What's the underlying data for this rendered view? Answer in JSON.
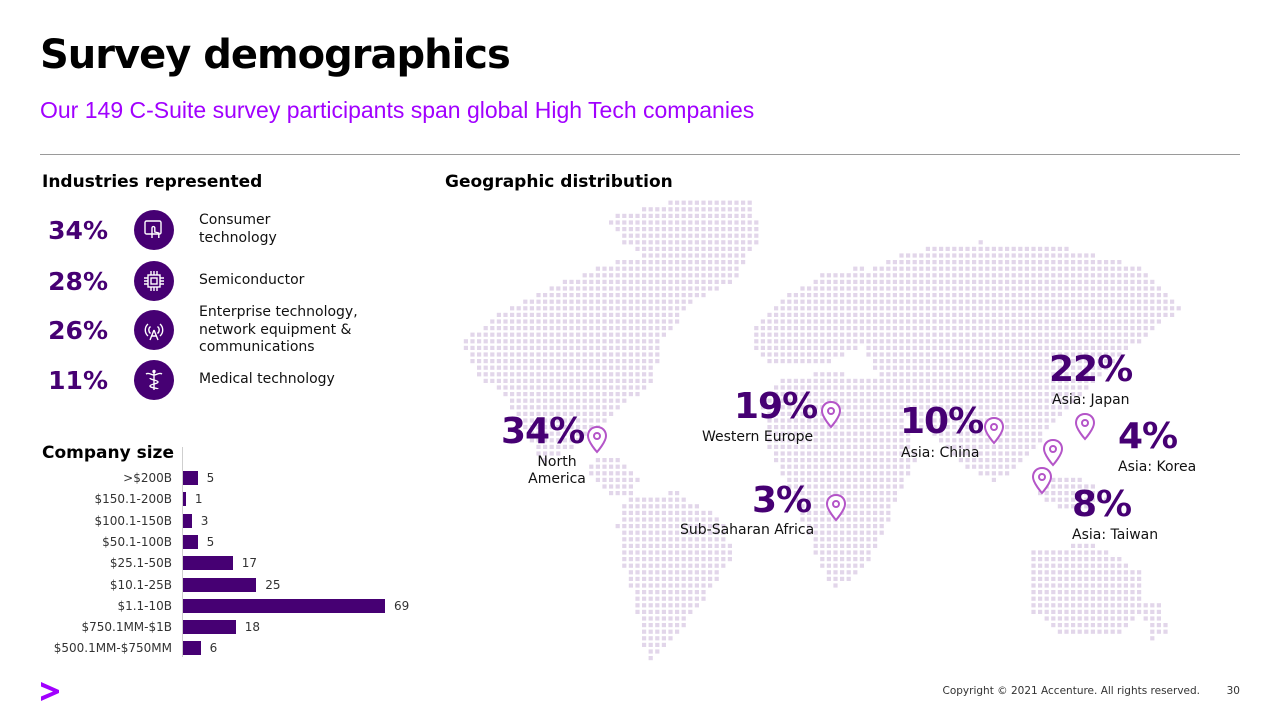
{
  "header": {
    "title": "Survey demographics",
    "subtitle": "Our 149 C-Suite survey participants span global High Tech companies"
  },
  "industries": {
    "heading": "Industries represented",
    "items": [
      {
        "pct": "34%",
        "label": "Consumer technology",
        "icon": "touch-screen-icon"
      },
      {
        "pct": "28%",
        "label": "Semiconductor",
        "icon": "chip-icon"
      },
      {
        "pct": "26%",
        "label": "Enterprise technology, network equipment & communications",
        "icon": "broadcast-tower-icon"
      },
      {
        "pct": "11%",
        "label": "Medical technology",
        "icon": "caduceus-icon"
      }
    ]
  },
  "company_size": {
    "heading": "Company size"
  },
  "chart_data": {
    "type": "bar",
    "orientation": "horizontal",
    "title": "Company size",
    "categories": [
      ">$200B",
      "$150.1-200B",
      "$100.1-150B",
      "$50.1-100B",
      "$25.1-50B",
      "$10.1-25B",
      "$1.1-10B",
      "$750.1MM-$1B",
      "$500.1MM-$750MM"
    ],
    "values": [
      5,
      1,
      3,
      5,
      17,
      25,
      69,
      18,
      6
    ],
    "xlim": [
      0,
      69
    ],
    "grid": false,
    "legend": "none",
    "color": "#460073"
  },
  "geography": {
    "heading": "Geographic distribution",
    "regions": [
      {
        "pct": "34%",
        "label": "North America"
      },
      {
        "pct": "19%",
        "label": "Western Europe"
      },
      {
        "pct": "3%",
        "label": "Sub-Saharan Africa"
      },
      {
        "pct": "10%",
        "label": "Asia: China"
      },
      {
        "pct": "22%",
        "label": "Asia: Japan"
      },
      {
        "pct": "4%",
        "label": "Asia: Korea"
      },
      {
        "pct": "8%",
        "label": "Asia: Taiwan"
      }
    ]
  },
  "footer": {
    "copyright": "Copyright © 2021 Accenture. All rights reserved.",
    "page": "30",
    "logo": "accenture-logo-icon"
  },
  "colors": {
    "accent": "#a100ff",
    "dark_purple": "#460073",
    "pin": "#b455c8",
    "map_dot": "#e2d6ea"
  }
}
